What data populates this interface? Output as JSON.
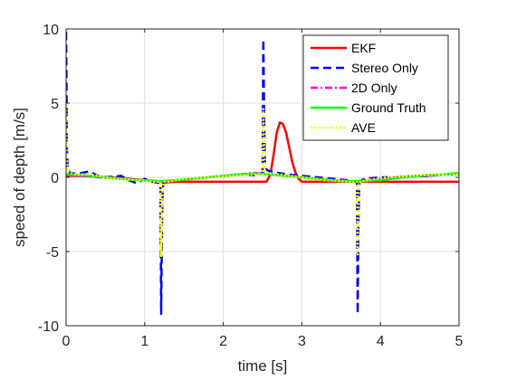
{
  "chart_data": {
    "type": "line",
    "title": "",
    "xlabel": "time [s]",
    "ylabel": "speed of depth [m/s]",
    "xlim": [
      0,
      5
    ],
    "ylim": [
      -10,
      10
    ],
    "xticks": [
      0,
      1,
      2,
      3,
      4,
      5
    ],
    "yticks": [
      -10,
      -5,
      0,
      5,
      10
    ],
    "xtick_labels": [
      "0",
      "1",
      "2",
      "3",
      "4",
      "5"
    ],
    "ytick_labels": [
      "-10",
      "-5",
      "0",
      "5",
      "10"
    ],
    "grid": true,
    "legend_position": "top-right",
    "series": [
      {
        "name": "EKF",
        "color": "#ff0000",
        "style": "solid",
        "x": [
          0,
          0.2,
          0.4,
          0.6,
          0.8,
          1.0,
          1.15,
          1.25,
          1.4,
          1.6,
          1.8,
          2.0,
          2.2,
          2.4,
          2.55,
          2.6,
          2.64,
          2.68,
          2.72,
          2.76,
          2.8,
          2.84,
          2.88,
          2.92,
          2.96,
          3.0,
          3.1,
          3.3,
          3.5,
          3.7,
          3.9,
          4.2,
          4.5,
          4.8,
          5.0
        ],
        "y": [
          0.1,
          0.1,
          0.05,
          0.0,
          -0.1,
          -0.2,
          -0.3,
          -0.35,
          -0.3,
          -0.3,
          -0.3,
          -0.3,
          -0.3,
          -0.3,
          -0.3,
          0.2,
          1.5,
          3.0,
          3.7,
          3.6,
          3.0,
          2.0,
          1.0,
          0.3,
          -0.1,
          -0.3,
          -0.3,
          -0.3,
          -0.3,
          -0.3,
          -0.3,
          -0.3,
          -0.3,
          -0.3,
          -0.3
        ]
      },
      {
        "name": "Stereo Only",
        "color": "#0000ff",
        "style": "dashed",
        "x": [
          0,
          0.005,
          0.01,
          0.02,
          0.05,
          0.1,
          0.2,
          0.3,
          0.4,
          0.5,
          0.6,
          0.7,
          0.8,
          0.9,
          1.0,
          1.1,
          1.2,
          1.21,
          1.22,
          1.23,
          1.24,
          1.26,
          1.3,
          1.4,
          1.6,
          1.8,
          2.0,
          2.2,
          2.4,
          2.5,
          2.51,
          2.52,
          2.53,
          2.55,
          2.6,
          2.8,
          3.0,
          3.2,
          3.4,
          3.6,
          3.7,
          3.71,
          3.72,
          3.73,
          3.74,
          3.76,
          3.8,
          4.0,
          4.2,
          4.4,
          4.6,
          4.8,
          5.0
        ],
        "y": [
          9.8,
          7.0,
          2.0,
          0.5,
          0.3,
          0.25,
          0.3,
          0.4,
          0.1,
          0.0,
          0.05,
          0.1,
          -0.2,
          -0.4,
          -0.1,
          -0.3,
          -0.4,
          -9.2,
          -3.0,
          -0.8,
          -0.4,
          -0.3,
          -0.3,
          -0.2,
          -0.1,
          0.0,
          0.1,
          0.2,
          0.15,
          0.3,
          9.3,
          4.0,
          1.0,
          0.5,
          0.4,
          0.2,
          0.1,
          0.0,
          -0.1,
          -0.2,
          -0.3,
          -9.2,
          -3.0,
          -0.8,
          -0.3,
          -0.2,
          -0.1,
          0.0,
          0.0,
          0.05,
          0.1,
          0.2,
          0.2
        ]
      },
      {
        "name": "2D Only",
        "color": "#ff00ff",
        "style": "dashdot",
        "x": [
          0,
          0.1,
          0.2,
          0.4,
          0.6,
          0.8,
          1.0,
          1.2,
          1.4,
          1.6,
          1.8,
          2.0,
          2.2,
          2.4,
          2.6,
          2.8,
          3.0,
          3.2,
          3.4,
          3.6,
          3.8,
          4.0,
          4.2,
          4.4,
          4.6,
          4.8,
          5.0
        ],
        "y": [
          0.2,
          0.1,
          0.1,
          0.0,
          -0.05,
          -0.1,
          -0.2,
          -0.3,
          -0.2,
          -0.1,
          0.0,
          0.1,
          0.2,
          0.3,
          0.2,
          0.1,
          0.0,
          -0.1,
          -0.2,
          -0.3,
          -0.2,
          -0.1,
          0.0,
          0.1,
          0.1,
          0.2,
          0.2
        ]
      },
      {
        "name": "Ground Truth",
        "color": "#00ff00",
        "style": "solid",
        "x": [
          0,
          0.2,
          0.4,
          0.6,
          0.8,
          1.0,
          1.2,
          1.4,
          1.6,
          1.8,
          2.0,
          2.2,
          2.4,
          2.6,
          2.8,
          3.0,
          3.2,
          3.4,
          3.6,
          3.8,
          4.0,
          4.2,
          4.4,
          4.6,
          4.8,
          5.0
        ],
        "y": [
          0.2,
          0.15,
          0.05,
          -0.05,
          -0.15,
          -0.2,
          -0.25,
          -0.2,
          -0.1,
          0.0,
          0.1,
          0.2,
          0.25,
          0.2,
          0.1,
          0.0,
          -0.1,
          -0.2,
          -0.25,
          -0.25,
          -0.2,
          -0.05,
          0.05,
          0.15,
          0.2,
          0.3
        ]
      },
      {
        "name": "AVE",
        "color": "#ffff00",
        "style": "dotted",
        "x": [
          0,
          0.005,
          0.01,
          0.02,
          0.05,
          0.1,
          0.3,
          0.5,
          0.7,
          0.9,
          1.1,
          1.2,
          1.21,
          1.22,
          1.23,
          1.25,
          1.3,
          1.5,
          1.8,
          2.1,
          2.4,
          2.5,
          2.51,
          2.52,
          2.53,
          2.55,
          2.7,
          3.0,
          3.3,
          3.6,
          3.7,
          3.71,
          3.72,
          3.73,
          3.75,
          3.8,
          4.1,
          4.4,
          4.7,
          5.0
        ],
        "y": [
          4.8,
          3.0,
          1.0,
          0.4,
          0.3,
          0.2,
          0.2,
          0.0,
          -0.1,
          -0.2,
          -0.3,
          -0.3,
          -5.3,
          -2.5,
          -0.6,
          -0.3,
          -0.3,
          -0.1,
          0.0,
          0.1,
          0.2,
          0.2,
          4.6,
          2.0,
          0.5,
          0.3,
          0.2,
          0.0,
          -0.2,
          -0.3,
          -0.3,
          -5.2,
          -2.0,
          -0.5,
          -0.3,
          -0.2,
          0.0,
          0.1,
          0.2,
          0.2
        ]
      }
    ]
  }
}
